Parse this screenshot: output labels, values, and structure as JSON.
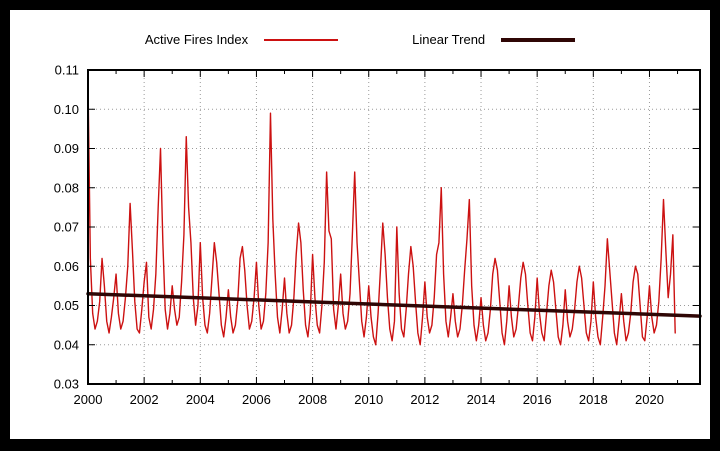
{
  "page": {
    "background": "#000000",
    "canvas_background": "#ffffff"
  },
  "chart_data": {
    "type": "line",
    "title": "",
    "xlabel": "",
    "ylabel": "",
    "xlim": [
      2000,
      2021.8
    ],
    "ylim": [
      0.03,
      0.11
    ],
    "y_ticks": [
      0.03,
      0.04,
      0.05,
      0.06,
      0.07,
      0.08,
      0.09,
      0.1,
      0.11
    ],
    "x_ticks": [
      2000,
      2002,
      2004,
      2006,
      2008,
      2010,
      2012,
      2014,
      2016,
      2018,
      2020
    ],
    "x_minor_step": 1,
    "grid": true,
    "legend_position": "top-center",
    "axis_color": "#000000",
    "grid_color": "#9a9a9a",
    "series": [
      {
        "name": "Active Fires Index",
        "color": "#cc1111",
        "line_width": 1.4,
        "x_start": 2000,
        "x_step": 0.0833333,
        "values": [
          0.107,
          0.062,
          0.048,
          0.044,
          0.046,
          0.051,
          0.062,
          0.055,
          0.046,
          0.043,
          0.047,
          0.052,
          0.058,
          0.048,
          0.044,
          0.046,
          0.052,
          0.06,
          0.076,
          0.064,
          0.051,
          0.044,
          0.043,
          0.049,
          0.056,
          0.061,
          0.047,
          0.044,
          0.049,
          0.058,
          0.075,
          0.09,
          0.066,
          0.049,
          0.044,
          0.048,
          0.055,
          0.049,
          0.045,
          0.047,
          0.056,
          0.068,
          0.093,
          0.075,
          0.066,
          0.052,
          0.045,
          0.05,
          0.066,
          0.052,
          0.045,
          0.043,
          0.048,
          0.057,
          0.066,
          0.061,
          0.053,
          0.045,
          0.042,
          0.047,
          0.054,
          0.047,
          0.043,
          0.045,
          0.051,
          0.062,
          0.065,
          0.059,
          0.05,
          0.044,
          0.046,
          0.052,
          0.061,
          0.05,
          0.044,
          0.046,
          0.053,
          0.066,
          0.099,
          0.072,
          0.058,
          0.047,
          0.043,
          0.049,
          0.057,
          0.048,
          0.043,
          0.045,
          0.052,
          0.063,
          0.071,
          0.066,
          0.054,
          0.045,
          0.042,
          0.048,
          0.063,
          0.052,
          0.045,
          0.043,
          0.05,
          0.061,
          0.084,
          0.069,
          0.067,
          0.049,
          0.044,
          0.05,
          0.058,
          0.048,
          0.044,
          0.046,
          0.053,
          0.068,
          0.084,
          0.066,
          0.056,
          0.046,
          0.042,
          0.047,
          0.055,
          0.047,
          0.042,
          0.04,
          0.048,
          0.059,
          0.071,
          0.063,
          0.052,
          0.044,
          0.041,
          0.046,
          0.07,
          0.053,
          0.044,
          0.042,
          0.049,
          0.058,
          0.065,
          0.06,
          0.051,
          0.043,
          0.04,
          0.047,
          0.056,
          0.047,
          0.043,
          0.045,
          0.052,
          0.063,
          0.066,
          0.08,
          0.058,
          0.046,
          0.042,
          0.047,
          0.053,
          0.046,
          0.042,
          0.044,
          0.05,
          0.059,
          0.067,
          0.077,
          0.055,
          0.045,
          0.041,
          0.045,
          0.052,
          0.045,
          0.041,
          0.043,
          0.049,
          0.058,
          0.062,
          0.059,
          0.051,
          0.043,
          0.04,
          0.046,
          0.055,
          0.047,
          0.042,
          0.044,
          0.05,
          0.057,
          0.061,
          0.058,
          0.05,
          0.043,
          0.041,
          0.047,
          0.057,
          0.048,
          0.043,
          0.041,
          0.048,
          0.055,
          0.059,
          0.056,
          0.049,
          0.042,
          0.04,
          0.045,
          0.054,
          0.046,
          0.042,
          0.044,
          0.049,
          0.056,
          0.06,
          0.057,
          0.05,
          0.043,
          0.041,
          0.046,
          0.056,
          0.047,
          0.042,
          0.04,
          0.047,
          0.055,
          0.067,
          0.059,
          0.051,
          0.043,
          0.04,
          0.046,
          0.053,
          0.046,
          0.041,
          0.043,
          0.048,
          0.056,
          0.06,
          0.058,
          0.05,
          0.042,
          0.041,
          0.047,
          0.055,
          0.047,
          0.043,
          0.045,
          0.051,
          0.062,
          0.077,
          0.064,
          0.052,
          0.058,
          0.068,
          0.043
        ]
      },
      {
        "name": "Linear Trend",
        "color": "#2f0605",
        "line_width": 3.5,
        "x": [
          2000,
          2021.8
        ],
        "values": [
          0.053,
          0.0473
        ]
      }
    ]
  }
}
